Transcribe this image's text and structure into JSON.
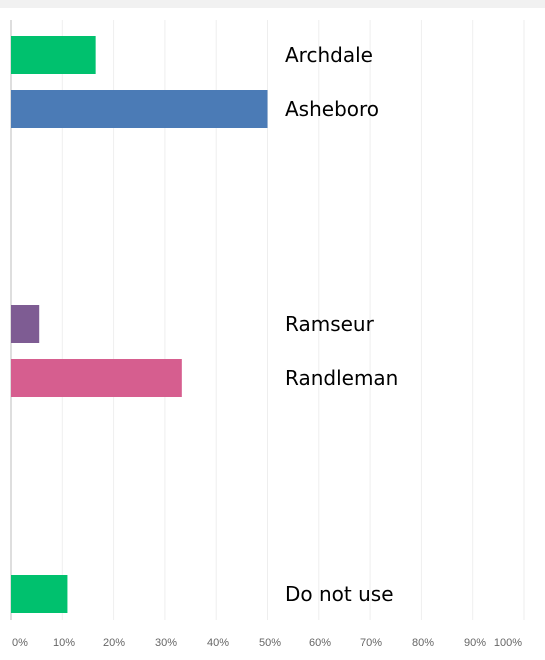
{
  "chart_data": {
    "type": "bar",
    "orientation": "horizontal",
    "categories": [
      "Archdale",
      "Asheboro",
      "",
      "",
      "Ramseur",
      "Randleman",
      "",
      "",
      "Do not use"
    ],
    "values": [
      16.5,
      50,
      0,
      0,
      5.5,
      33.3,
      0,
      0,
      11
    ],
    "colors": [
      "#00c16e",
      "#4b7bb6",
      null,
      null,
      "#7e5c93",
      "#d65e8f",
      null,
      null,
      "#00c16e"
    ],
    "xlim": [
      0,
      100
    ],
    "x_ticks": [
      "0%",
      "10%",
      "20%",
      "30%",
      "40%",
      "50%",
      "60%",
      "70%",
      "80%",
      "90%",
      "100%"
    ],
    "grid": true,
    "title": "",
    "xlabel": "",
    "ylabel": ""
  }
}
